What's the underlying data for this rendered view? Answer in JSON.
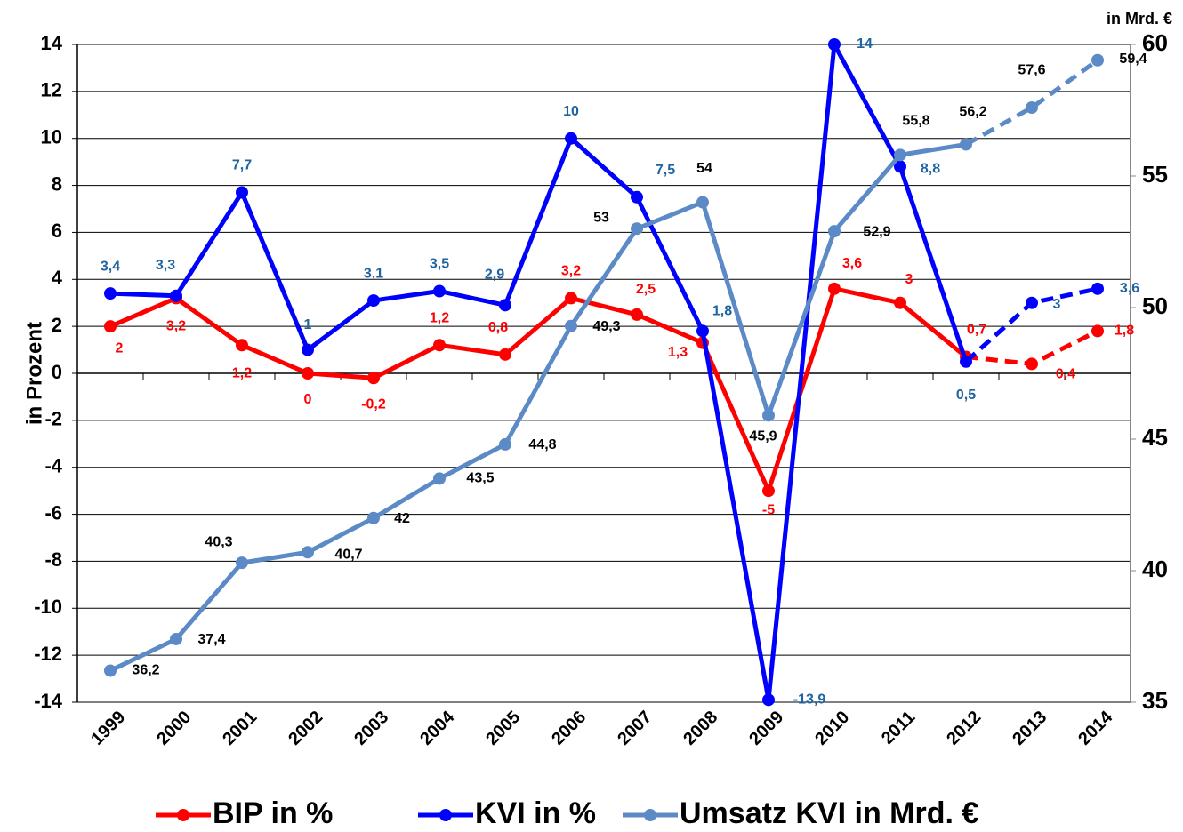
{
  "chart_data": {
    "type": "line",
    "y_axis_label": "in Prozent",
    "y2_axis_label": "in Mrd. €",
    "categories": [
      "1999",
      "2000",
      "2001",
      "2002",
      "2003",
      "2004",
      "2005",
      "2006",
      "2007",
      "2008",
      "2009",
      "2010",
      "2011",
      "2012",
      "2013",
      "2014"
    ],
    "ylim": [
      -14,
      14
    ],
    "yticks": [
      -14,
      -12,
      -10,
      -8,
      -6,
      -4,
      -2,
      0,
      2,
      4,
      6,
      8,
      10,
      12,
      14
    ],
    "y2lim": [
      35,
      60
    ],
    "y2ticks": [
      35,
      40,
      45,
      50,
      55,
      60
    ],
    "grid": true,
    "legend": "bottom",
    "series": [
      {
        "name": "BIP in %",
        "color": "#ff0000",
        "label_color": "#ff0000",
        "dashed_from": "2012",
        "values": [
          2,
          3.2,
          1.2,
          0,
          -0.2,
          1.2,
          0.8,
          3.2,
          2.5,
          1.3,
          -5,
          3.6,
          3,
          0.7,
          0.4,
          1.8
        ],
        "value_labels": [
          "2",
          "3,2",
          "1,2",
          "0",
          "-0,2",
          "1,2",
          "0,8",
          "3,2",
          "2,5",
          "1,3",
          "-5",
          "3,6",
          "3",
          "0,7",
          "0,4",
          "1,8"
        ]
      },
      {
        "name": "KVI in %",
        "color": "#0000ff",
        "label_color": "#1f64a0",
        "dashed_from": "2012",
        "values": [
          3.4,
          3.3,
          7.7,
          1,
          3.1,
          3.5,
          2.9,
          10,
          7.5,
          1.8,
          -13.9,
          14,
          8.8,
          0.5,
          3,
          3.6
        ],
        "value_labels": [
          "3,4",
          "3,3",
          "7,7",
          "1",
          "3,1",
          "3,5",
          "2,9",
          "10",
          "7,5",
          "1,8",
          "-13,9",
          "14",
          "8,8",
          "0,5",
          "3",
          "3,6"
        ]
      },
      {
        "name": "Umsatz KVI in Mrd. €",
        "color": "#5b8ac6",
        "label_color": "#000000",
        "dashed_from": "2012",
        "axis": "y2",
        "values": [
          36.2,
          37.4,
          40.3,
          40.7,
          42,
          43.5,
          44.8,
          49.3,
          53,
          54,
          45.9,
          52.9,
          55.8,
          56.2,
          57.6,
          59.4
        ],
        "value_labels": [
          "36,2",
          "37,4",
          "40,3",
          "40,7",
          "42",
          "43,5",
          "44,8",
          "49,3",
          "53",
          "54",
          "45,9",
          "52,9",
          "55,8",
          "56,2",
          "57,6",
          "59,4"
        ]
      }
    ]
  }
}
